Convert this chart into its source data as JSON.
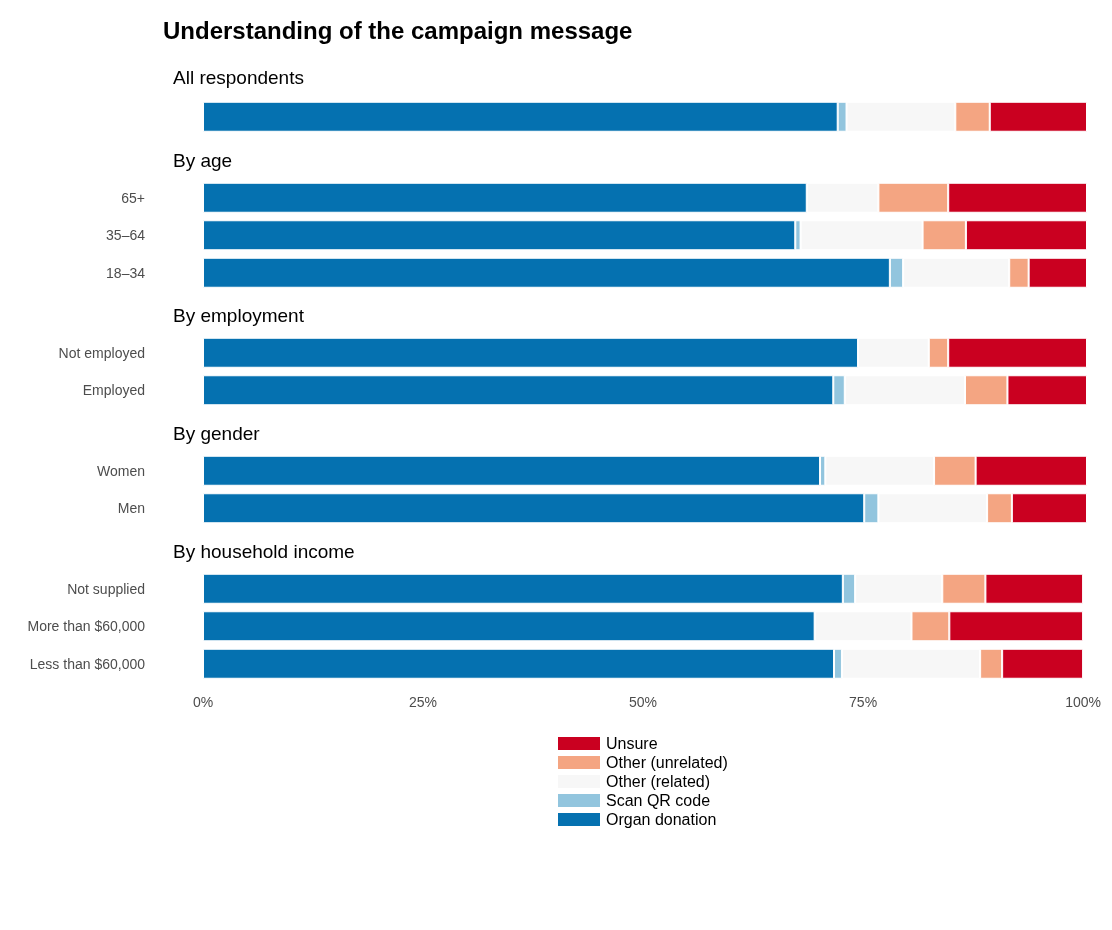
{
  "chart_data": [
    {
      "type": "bar",
      "title": "Understanding of the campaign message",
      "subtitle": "All respondents",
      "orientation": "horizontal",
      "stacked": true,
      "categories": [
        null
      ],
      "xlim": [
        0,
        100
      ],
      "tick_labels": "y",
      "series": [
        {
          "color": "#0571b0",
          "values": [
            71.8
          ]
        },
        {
          "color": "#92c5de",
          "values": [
            1.0
          ]
        },
        {
          "color": "#f7f7f7",
          "values": [
            12.3
          ]
        },
        {
          "color": "#f4a582",
          "values": [
            3.9
          ]
        },
        {
          "color": "#ca0020",
          "values": [
            11.0
          ]
        }
      ]
    },
    {
      "type": "bar",
      "title": "By age",
      "orientation": "horizontal",
      "stacked": true,
      "categories": [
        "65+",
        "35–64",
        "18–34"
      ],
      "xlim": [
        0,
        100
      ],
      "tick_labels": "y",
      "series": [
        {
          "color": "#0571b0",
          "values": [
            68.3,
            67.0,
            77.7
          ]
        },
        {
          "color": "#92c5de",
          "values": [
            null,
            0.6,
            1.5
          ]
        },
        {
          "color": "#f7f7f7",
          "values": [
            8.1,
            13.8,
            12.0
          ]
        },
        {
          "color": "#f4a582",
          "values": [
            7.9,
            4.9,
            2.2
          ]
        },
        {
          "color": "#ca0020",
          "values": [
            15.7,
            13.7,
            6.6
          ]
        }
      ]
    },
    {
      "type": "bar",
      "title": "By employment",
      "orientation": "horizontal",
      "stacked": true,
      "categories": [
        "Not employed",
        "Employed"
      ],
      "xlim": [
        0,
        100
      ],
      "tick_labels": "y",
      "series": [
        {
          "color": "#0571b0",
          "values": [
            74.1,
            71.3
          ]
        },
        {
          "color": "#92c5de",
          "values": [
            null,
            1.3
          ]
        },
        {
          "color": "#f7f7f7",
          "values": [
            8.0,
            13.6
          ]
        },
        {
          "color": "#f4a582",
          "values": [
            2.2,
            4.8
          ]
        },
        {
          "color": "#ca0020",
          "values": [
            15.7,
            9.0
          ]
        }
      ]
    },
    {
      "type": "bar",
      "title": "By gender",
      "orientation": "horizontal",
      "stacked": true,
      "categories": [
        "Women",
        "Men"
      ],
      "xlim": [
        0,
        100
      ],
      "tick_labels": "y",
      "series": [
        {
          "color": "#0571b0",
          "values": [
            69.8,
            74.8
          ]
        },
        {
          "color": "#92c5de",
          "values": [
            0.6,
            1.6
          ]
        },
        {
          "color": "#f7f7f7",
          "values": [
            12.3,
            12.3
          ]
        },
        {
          "color": "#f4a582",
          "values": [
            4.7,
            2.8
          ]
        },
        {
          "color": "#ca0020",
          "values": [
            12.6,
            8.5
          ]
        }
      ]
    },
    {
      "type": "bar",
      "title": "By household income",
      "orientation": "horizontal",
      "stacked": true,
      "categories": [
        "Not supplied",
        "More than $60,000",
        "Less than $60,000"
      ],
      "xlim": [
        0,
        100
      ],
      "xticks": [
        {
          "value": 0,
          "label": "0%"
        },
        {
          "value": 25,
          "label": "25%"
        },
        {
          "value": 50,
          "label": "50%"
        },
        {
          "value": 75,
          "label": "75%"
        },
        {
          "value": 100,
          "label": "100%"
        }
      ],
      "legend": "bottom",
      "series": [
        {
          "name": "Organ donation",
          "color": "#0571b0",
          "values": [
            72.7,
            69.5,
            71.7
          ]
        },
        {
          "name": "Scan QR code",
          "color": "#92c5de",
          "values": [
            1.4,
            null,
            0.9
          ]
        },
        {
          "name": "Other (related)",
          "color": "#f7f7f7",
          "values": [
            9.9,
            11.0,
            15.7
          ]
        },
        {
          "name": "Other (unrelated)",
          "color": "#f4a582",
          "values": [
            4.9,
            4.3,
            2.5
          ]
        },
        {
          "name": "Unsure",
          "color": "#ca0020",
          "values": [
            11.1,
            15.2,
            9.2
          ]
        }
      ]
    }
  ]
}
